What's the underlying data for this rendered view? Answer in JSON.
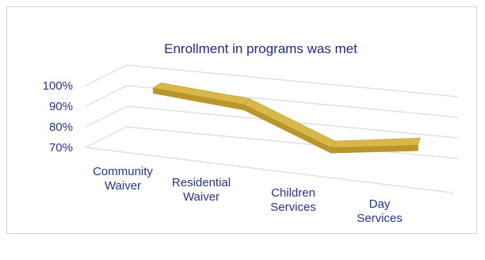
{
  "chart_data": {
    "type": "line",
    "title": "Enrollment in programs was met",
    "categories": [
      [
        "Community",
        "Waiver"
      ],
      [
        "Residential",
        "Waiver"
      ],
      [
        "Children",
        "Services"
      ],
      [
        "Day",
        "Services"
      ]
    ],
    "series": [
      {
        "values": [
          99,
          96,
          80,
          86
        ]
      }
    ],
    "yticks": [
      "100%",
      "90%",
      "80%",
      "70%"
    ],
    "ylim": [
      70,
      100
    ],
    "grid": true,
    "three_d": true,
    "legend": "none",
    "colors": {
      "line_top": "#d9b84a",
      "line_face": "#b8962a",
      "grid": "#d9d9e3",
      "text": "#253494",
      "title": "#1f2a8a"
    }
  }
}
